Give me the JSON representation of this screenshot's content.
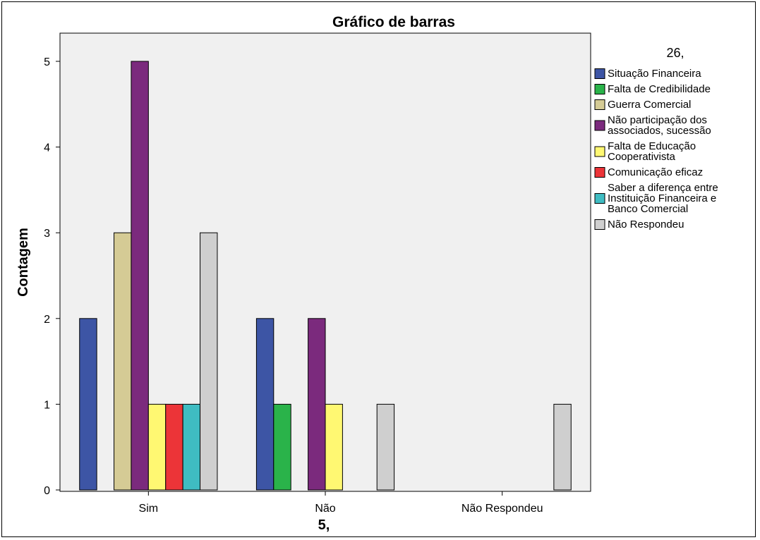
{
  "chart_data": {
    "type": "bar",
    "title": "Gráfico de barras",
    "xlabel": "5,",
    "ylabel": "Contagem",
    "legend_title": "26,",
    "legend_position": "right",
    "ylim": [
      0,
      5
    ],
    "yticks": [
      "0",
      "1",
      "2",
      "3",
      "4",
      "5"
    ],
    "categories": [
      "Sim",
      "Não",
      "Não Respondeu"
    ],
    "series": [
      {
        "name": "Situação Financeira",
        "legend_lines": [
          "Situação Financeira"
        ],
        "color": "#3D55A5",
        "values": [
          2,
          2,
          0
        ]
      },
      {
        "name": "Falta de Credibilidade",
        "legend_lines": [
          "Falta de Credibilidade"
        ],
        "color": "#2AB34A",
        "values": [
          0,
          1,
          0
        ]
      },
      {
        "name": "Guerra Comercial",
        "legend_lines": [
          "Guerra Comercial"
        ],
        "color": "#D5CB95",
        "values": [
          3,
          0,
          0
        ]
      },
      {
        "name": "Não participação dos associados, sucessão",
        "legend_lines": [
          "Não participação dos",
          "associados, sucessão"
        ],
        "color": "#7B2A7D",
        "values": [
          5,
          2,
          0
        ]
      },
      {
        "name": "Falta de Educação Cooperativista",
        "legend_lines": [
          "Falta de Educação",
          "Cooperativista"
        ],
        "color": "#FFF872",
        "values": [
          1,
          1,
          0
        ]
      },
      {
        "name": "Comunicação eficaz",
        "legend_lines": [
          "Comunicação eficaz"
        ],
        "color": "#EC3438",
        "values": [
          1,
          0,
          0
        ]
      },
      {
        "name": "Saber a diferença entre Instituição Financeira e Banco Comercial",
        "legend_lines": [
          "Saber a diferença entre",
          "Instituição Financeira e",
          "Banco Comercial"
        ],
        "color": "#3FBCC2",
        "values": [
          1,
          0,
          0
        ]
      },
      {
        "name": "Não Respondeu",
        "legend_lines": [
          "Não Respondeu"
        ],
        "color": "#CFCFCF",
        "values": [
          3,
          1,
          1
        ]
      }
    ],
    "plot_background": "#F0F0F0",
    "grid": false
  }
}
